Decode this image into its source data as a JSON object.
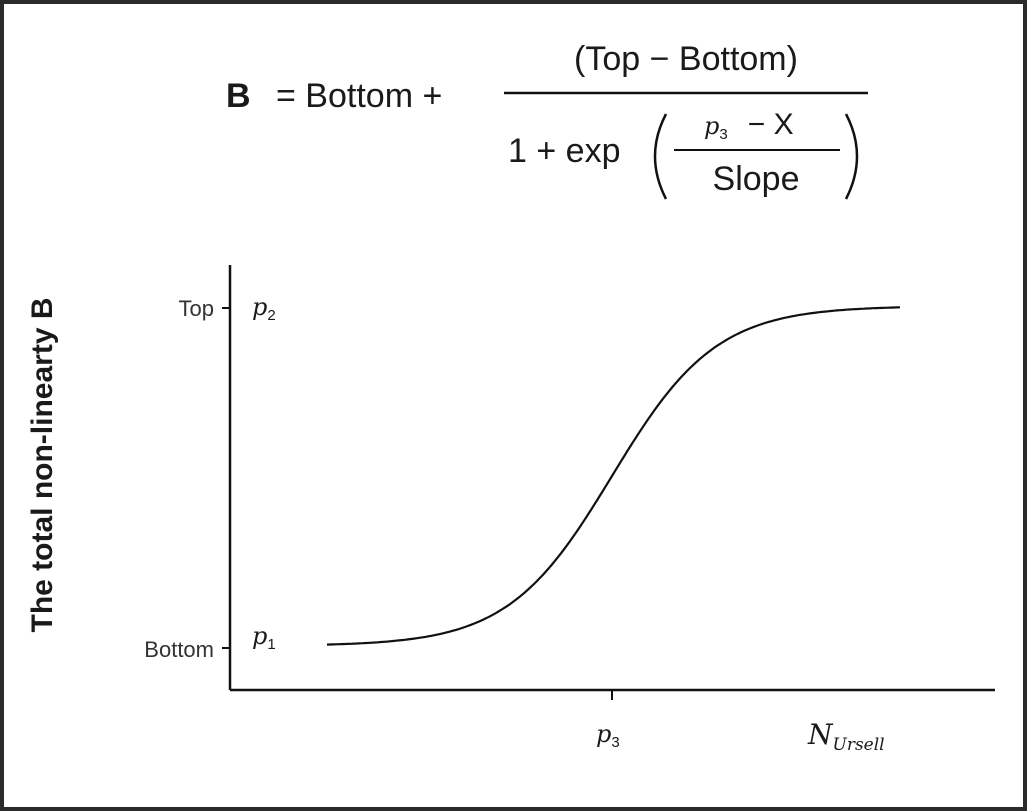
{
  "formula": {
    "lhs": "B",
    "equals_part": "= Bottom +",
    "numerator": "(Top − Bottom)",
    "denominator_prefix": "1 + exp",
    "inner_numerator": {
      "symbol": "p",
      "subscript": "3",
      "rest": "− X"
    },
    "inner_denominator": "Slope"
  },
  "plot": {
    "y_axis_label": "The total non-linearty B",
    "y_ticks": [
      {
        "label": "Top",
        "param": {
          "symbol": "p",
          "subscript": "2"
        }
      },
      {
        "label": "Bottom",
        "param": {
          "symbol": "p",
          "subscript": "1"
        }
      }
    ],
    "x_tick": {
      "symbol": "p",
      "subscript": "3"
    },
    "x_axis_label": {
      "symbol": "N",
      "subscript": "Ursell"
    }
  }
}
